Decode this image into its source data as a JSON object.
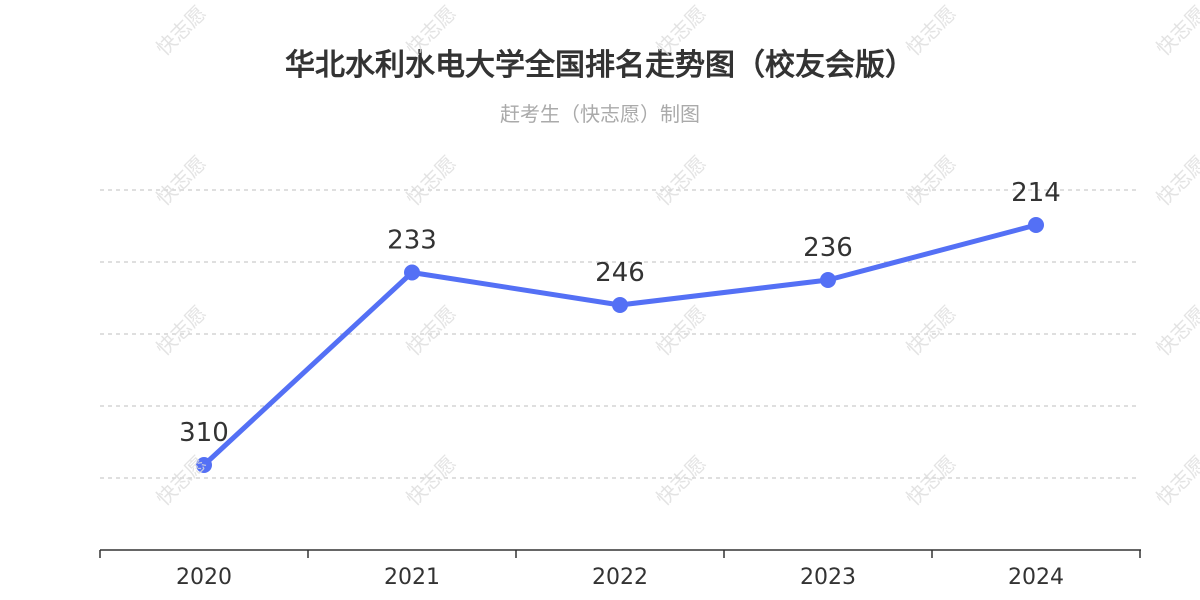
{
  "header": {
    "title": "华北水利水电大学全国排名走势图（校友会版）",
    "subtitle": "赶考生（快志愿）制图"
  },
  "watermark": "快志愿",
  "colors": {
    "line": "#5470f5",
    "grid": "#cccccc",
    "axis": "#333333",
    "label": "#333333"
  },
  "chart_data": {
    "type": "line",
    "title": "华北水利水电大学全国排名走势图（校友会版）",
    "subtitle": "赶考生（快志愿）制图",
    "categories": [
      "2020",
      "2021",
      "2022",
      "2023",
      "2024"
    ],
    "values": [
      310,
      233,
      246,
      236,
      214
    ],
    "y_inverted": true,
    "data_labels": [
      "310",
      "233",
      "246",
      "236",
      "214"
    ],
    "grid": true,
    "legend": "none"
  }
}
